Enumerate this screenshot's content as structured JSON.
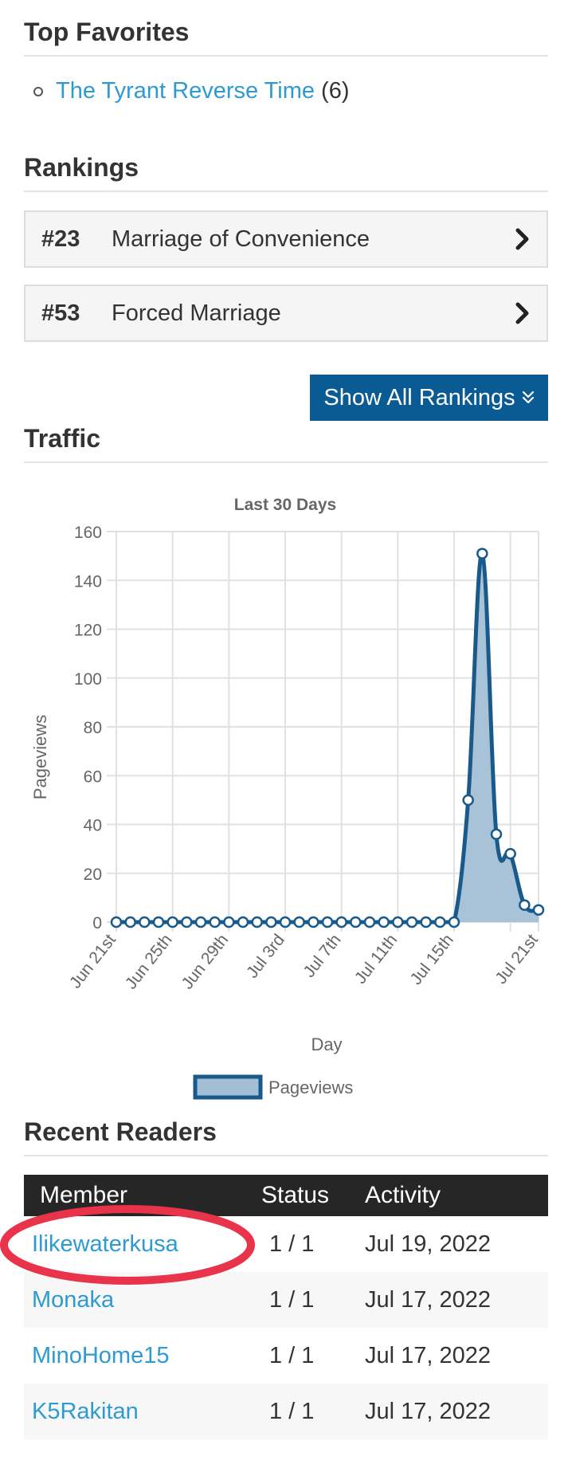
{
  "top_favorites": {
    "title": "Top Favorites",
    "items": [
      {
        "name": "The Tyrant Reverse Time",
        "count": "(6)"
      }
    ]
  },
  "rankings": {
    "title": "Rankings",
    "items": [
      {
        "rank": "#23",
        "name": "Marriage of Convenience"
      },
      {
        "rank": "#53",
        "name": "Forced Marriage"
      }
    ],
    "show_all_label": "Show All Rankings"
  },
  "traffic": {
    "title": "Traffic"
  },
  "chart_data": {
    "type": "area",
    "title": "Last 30 Days",
    "xlabel": "Day",
    "ylabel": "Pageviews",
    "ylim": [
      0,
      160
    ],
    "yticks": [
      0,
      20,
      40,
      60,
      80,
      100,
      120,
      140,
      160
    ],
    "x_tick_labels": [
      "Jun 21st",
      "Jun 25th",
      "Jun 29th",
      "Jul 3rd",
      "Jul 7th",
      "Jul 11th",
      "Jul 15th",
      "Jul 21st"
    ],
    "x": [
      "Jun 21",
      "Jun 22",
      "Jun 23",
      "Jun 24",
      "Jun 25",
      "Jun 26",
      "Jun 27",
      "Jun 28",
      "Jun 29",
      "Jun 30",
      "Jul 1",
      "Jul 2",
      "Jul 3",
      "Jul 4",
      "Jul 5",
      "Jul 6",
      "Jul 7",
      "Jul 8",
      "Jul 9",
      "Jul 10",
      "Jul 11",
      "Jul 12",
      "Jul 13",
      "Jul 14",
      "Jul 15",
      "Jul 16",
      "Jul 17",
      "Jul 18",
      "Jul 19",
      "Jul 20",
      "Jul 21"
    ],
    "series": [
      {
        "name": "Pageviews",
        "values": [
          0,
          0,
          0,
          0,
          0,
          0,
          0,
          0,
          0,
          0,
          0,
          0,
          0,
          0,
          0,
          0,
          0,
          0,
          0,
          0,
          0,
          0,
          0,
          0,
          0,
          50,
          151,
          36,
          28,
          7,
          5
        ]
      }
    ],
    "legend": "bottom",
    "grid": true,
    "colors": {
      "line": "#1a5a8a",
      "fill": "#a3bfd6"
    }
  },
  "recent_readers": {
    "title": "Recent Readers",
    "columns": [
      "Member",
      "Status",
      "Activity"
    ],
    "rows": [
      {
        "member": "Ilikewaterkusa",
        "status": "1 / 1",
        "activity": "Jul 19, 2022"
      },
      {
        "member": "Monaka",
        "status": "1 / 1",
        "activity": "Jul 17, 2022"
      },
      {
        "member": "MinoHome15",
        "status": "1 / 1",
        "activity": "Jul 17, 2022"
      },
      {
        "member": "K5Rakitan",
        "status": "1 / 1",
        "activity": "Jul 17, 2022"
      }
    ],
    "highlight_color": "#e8334a"
  }
}
